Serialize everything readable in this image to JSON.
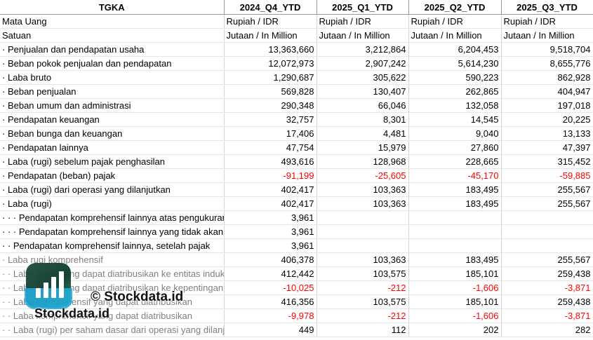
{
  "header": {
    "label": "TGKA",
    "periods": [
      "2024_Q4_YTD",
      "2025_Q1_YTD",
      "2025_Q2_YTD",
      "2025_Q3_YTD"
    ]
  },
  "meta_rows": [
    {
      "label": "Mata Uang",
      "values": [
        "Rupiah / IDR",
        "Rupiah / IDR",
        "Rupiah / IDR",
        "Rupiah / IDR"
      ]
    },
    {
      "label": "Satuan",
      "values": [
        "Jutaan / In Million",
        "Jutaan / In Million",
        "Jutaan / In Million",
        "Jutaan / In Million"
      ]
    }
  ],
  "rows": [
    {
      "label": "· Penjualan dan pendapatan usaha",
      "values": [
        "13,363,660",
        "3,212,864",
        "6,204,453",
        "9,518,704"
      ]
    },
    {
      "label": "· Beban pokok penjualan dan pendapatan",
      "values": [
        "12,072,973",
        "2,907,242",
        "5,614,230",
        "8,655,776"
      ]
    },
    {
      "label": "· Laba bruto",
      "values": [
        "1,290,687",
        "305,622",
        "590,223",
        "862,928"
      ]
    },
    {
      "label": "· Beban penjualan",
      "values": [
        "569,828",
        "130,407",
        "262,865",
        "404,947"
      ]
    },
    {
      "label": "· Beban umum dan administrasi",
      "values": [
        "290,348",
        "66,046",
        "132,058",
        "197,018"
      ]
    },
    {
      "label": "· Pendapatan keuangan",
      "values": [
        "32,757",
        "8,301",
        "14,545",
        "20,225"
      ]
    },
    {
      "label": "· Beban bunga dan keuangan",
      "values": [
        "17,406",
        "4,481",
        "9,040",
        "13,133"
      ]
    },
    {
      "label": "· Pendapatan lainnya",
      "values": [
        "47,754",
        "15,979",
        "27,860",
        "47,397"
      ]
    },
    {
      "label": "· Laba (rugi) sebelum pajak penghasilan",
      "values": [
        "493,616",
        "128,968",
        "228,665",
        "315,452"
      ]
    },
    {
      "label": "· Pendapatan (beban) pajak",
      "values": [
        "-91,199",
        "-25,605",
        "-45,170",
        "-59,885"
      ],
      "negative": true
    },
    {
      "label": "· Laba (rugi) dari operasi yang dilanjutkan",
      "values": [
        "402,417",
        "103,363",
        "183,495",
        "255,567"
      ]
    },
    {
      "label": "· Laba (rugi)",
      "values": [
        "402,417",
        "103,363",
        "183,495",
        "255,567"
      ]
    },
    {
      "label": "· · · Pendapatan komprehensif lainnya atas pengukuran kembali",
      "values": [
        "3,961",
        "",
        "",
        ""
      ]
    },
    {
      "label": "· · · Pendapatan komprehensif lainnya yang tidak akan direklasifikasi",
      "values": [
        "3,961",
        "",
        "",
        ""
      ]
    },
    {
      "label": "· · Pendapatan komprehensif lainnya, setelah pajak",
      "values": [
        "3,961",
        "",
        "",
        ""
      ]
    },
    {
      "label": "· Laba rugi komprehensif",
      "values": [
        "406,378",
        "103,363",
        "183,495",
        "255,567"
      ],
      "faded": true
    },
    {
      "label": "· · Laba (rugi) yang dapat diatribusikan ke entitas induk",
      "values": [
        "412,442",
        "103,575",
        "185,101",
        "259,438"
      ],
      "faded": true
    },
    {
      "label": "· · Laba (rugi) yang dapat diatribusikan ke kepentingan non-pengendali",
      "values": [
        "-10,025",
        "-212",
        "-1,606",
        "-3,871"
      ],
      "negative": true,
      "faded": true
    },
    {
      "label": "· · Laba komprehensif yang dapat diatribusikan",
      "values": [
        "416,356",
        "103,575",
        "185,101",
        "259,438"
      ],
      "faded": true
    },
    {
      "label": "· · Laba komprehensif yang dapat diatribusikan",
      "values": [
        "-9,978",
        "-212",
        "-1,606",
        "-3,871"
      ],
      "negative": true,
      "faded": true
    },
    {
      "label": "· · Laba (rugi) per saham dasar dari operasi yang dilanjutkan",
      "values": [
        "449",
        "112",
        "202",
        "282"
      ],
      "faded": true
    }
  ],
  "watermark": {
    "copyright": "© Stockdata.id",
    "brand": "Stockdata.id",
    "icon": "stockdata-logo-icon"
  },
  "colors": {
    "negative": "#ff0000",
    "grid": "#d4d4d4"
  }
}
